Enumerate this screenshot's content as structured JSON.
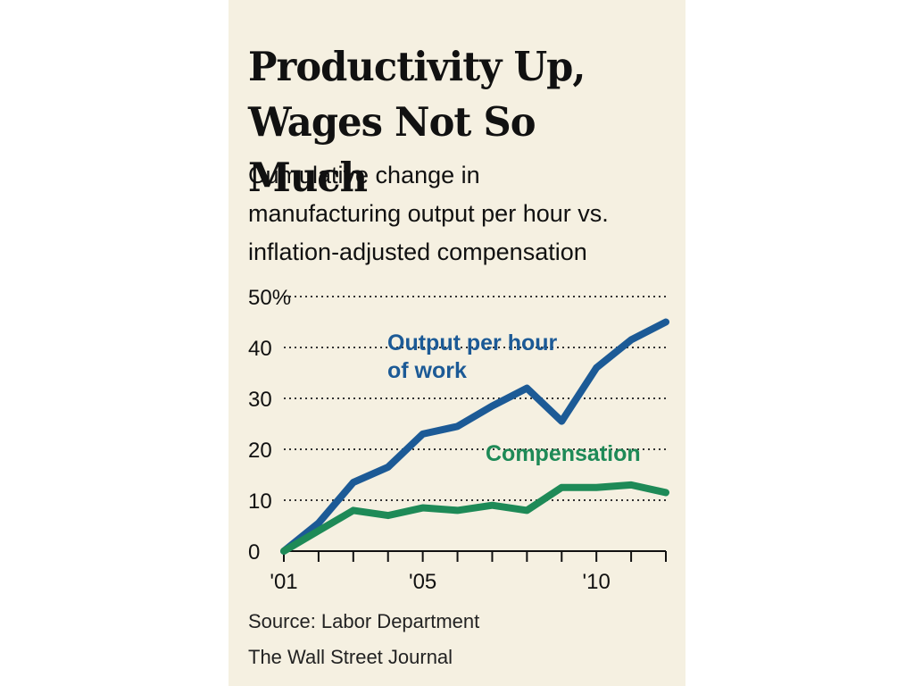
{
  "header": {
    "title_line1": "Productivity Up,",
    "title_line2": "Wages Not So Much",
    "subtitle_line1": "Cumulative change in",
    "subtitle_line2": "manufacturing output per hour vs.",
    "subtitle_line3": "inflation-adjusted compensation"
  },
  "footer": {
    "source": "Source: Labor Department",
    "credit": "The Wall Street Journal"
  },
  "colors": {
    "background": "#f5f0e1",
    "output": "#1c5a96",
    "compensation": "#1e8a57",
    "text": "#111111"
  },
  "chart_data": {
    "type": "line",
    "ylim": [
      0,
      50
    ],
    "xlim": [
      2001,
      2012
    ],
    "y_ticks": [
      {
        "value": 0,
        "label": "0"
      },
      {
        "value": 10,
        "label": "10"
      },
      {
        "value": 20,
        "label": "20"
      },
      {
        "value": 30,
        "label": "30"
      },
      {
        "value": 40,
        "label": "40"
      },
      {
        "value": 50,
        "label": "50%"
      }
    ],
    "x_tick_years": [
      2001,
      2002,
      2003,
      2004,
      2005,
      2006,
      2007,
      2008,
      2009,
      2010,
      2011,
      2012
    ],
    "x_tick_labels": [
      {
        "value": 2001,
        "label": "'01"
      },
      {
        "value": 2005,
        "label": "'05"
      },
      {
        "value": 2010,
        "label": "'10"
      }
    ],
    "grid": true,
    "series": [
      {
        "name": "Output per hour of work",
        "label_lines": [
          "Output per hour",
          "of work"
        ],
        "color": "#1c5a96",
        "x": [
          2001,
          2002,
          2003,
          2004,
          2005,
          2006,
          2007,
          2008,
          2009,
          2010,
          2011,
          2012
        ],
        "y": [
          0,
          5.5,
          13.5,
          16.5,
          23,
          24.5,
          28.5,
          32,
          25.5,
          36,
          41.5,
          45
        ]
      },
      {
        "name": "Compensation",
        "label_lines": [
          "Compensation"
        ],
        "color": "#1e8a57",
        "x": [
          2001,
          2002,
          2003,
          2004,
          2005,
          2006,
          2007,
          2008,
          2009,
          2010,
          2011,
          2012
        ],
        "y": [
          0,
          4,
          8,
          7,
          8.5,
          8,
          9,
          8,
          12.5,
          12.5,
          13,
          11.5
        ]
      }
    ]
  }
}
